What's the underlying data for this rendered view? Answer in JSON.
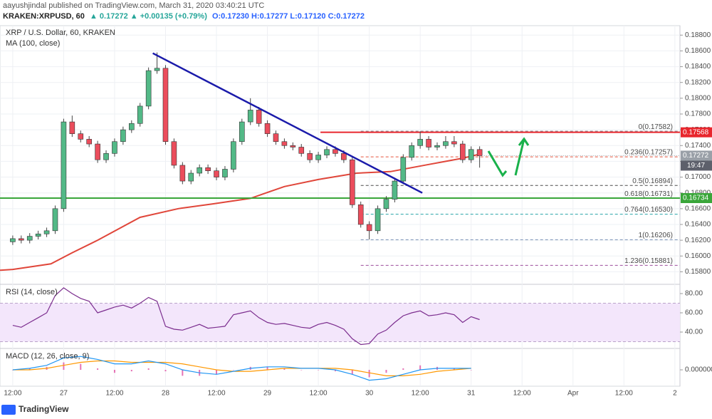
{
  "header": {
    "publisher": "aayushjindal published on TradingView.com, March 31, 2020 03:40:21 UTC",
    "symbol": "KRAKEN:XRPUSD, 60",
    "quote": "▲ 0.17272 ▲ +0.00135 (+0.79%)",
    "ohlc": "O:0.17230 H:0.17277 L:0.17120 C:0.17272"
  },
  "footer": {
    "brand": "TradingView"
  },
  "chart_data": [
    {
      "type": "candlestick",
      "title": "XRP / U.S. Dollar, 60, KRAKEN",
      "up_color": "#53b987",
      "down_color": "#eb4d5c",
      "x": [
        0,
        2,
        4,
        6,
        8,
        10,
        12,
        14,
        16,
        18,
        20,
        22,
        24,
        26,
        28,
        30,
        32,
        34,
        36,
        38,
        40,
        42,
        44,
        46,
        48,
        50,
        52,
        54,
        56,
        58,
        60,
        62,
        64,
        66,
        68,
        70,
        72,
        74,
        76,
        78,
        80,
        82,
        84,
        86,
        88,
        90,
        92,
        94,
        96,
        98,
        100,
        102,
        104,
        106,
        108,
        110
      ],
      "open": [
        0.1618,
        0.1622,
        0.162,
        0.1625,
        0.1628,
        0.1632,
        0.166,
        0.177,
        0.1755,
        0.1748,
        0.1742,
        0.1722,
        0.173,
        0.1745,
        0.176,
        0.1768,
        0.179,
        0.1835,
        0.1838,
        0.1745,
        0.1715,
        0.1695,
        0.1705,
        0.1712,
        0.1708,
        0.17,
        0.171,
        0.1745,
        0.177,
        0.1785,
        0.1768,
        0.1755,
        0.1745,
        0.174,
        0.1738,
        0.173,
        0.1722,
        0.1728,
        0.1735,
        0.173,
        0.1722,
        0.1665,
        0.164,
        0.1632,
        0.166,
        0.1672,
        0.1695,
        0.1725,
        0.174,
        0.1748,
        0.1738,
        0.174,
        0.1745,
        0.1742,
        0.1722,
        0.1735
      ],
      "high": [
        0.1626,
        0.1626,
        0.1629,
        0.1632,
        0.1636,
        0.1664,
        0.1774,
        0.1778,
        0.1759,
        0.1752,
        0.1746,
        0.1734,
        0.1749,
        0.1764,
        0.1772,
        0.1794,
        0.1839,
        0.1858,
        0.1842,
        0.1749,
        0.1719,
        0.1709,
        0.1716,
        0.1716,
        0.1712,
        0.1714,
        0.1749,
        0.1774,
        0.18,
        0.1789,
        0.1772,
        0.1759,
        0.1749,
        0.1744,
        0.1742,
        0.1734,
        0.1732,
        0.1739,
        0.1739,
        0.1734,
        0.1726,
        0.1669,
        0.1644,
        0.1664,
        0.1676,
        0.1699,
        0.1729,
        0.1744,
        0.1758,
        0.1752,
        0.1744,
        0.1752,
        0.1752,
        0.1746,
        0.1739,
        0.1739
      ],
      "low": [
        0.1614,
        0.1616,
        0.1616,
        0.1621,
        0.1624,
        0.1628,
        0.1656,
        0.1751,
        0.1744,
        0.1738,
        0.1718,
        0.1718,
        0.1726,
        0.1741,
        0.1756,
        0.1764,
        0.1786,
        0.1831,
        0.1741,
        0.1711,
        0.1691,
        0.1691,
        0.1701,
        0.1704,
        0.1696,
        0.1696,
        0.1706,
        0.1741,
        0.1766,
        0.1764,
        0.1751,
        0.1741,
        0.1736,
        0.1734,
        0.1726,
        0.1718,
        0.1718,
        0.1724,
        0.1726,
        0.1718,
        0.1661,
        0.1636,
        0.1621,
        0.1628,
        0.1656,
        0.1668,
        0.1691,
        0.1721,
        0.1736,
        0.1734,
        0.1734,
        0.1736,
        0.1738,
        0.1718,
        0.1718,
        0.1712
      ],
      "close": [
        0.1622,
        0.162,
        0.1625,
        0.1628,
        0.1632,
        0.166,
        0.177,
        0.1755,
        0.1748,
        0.1742,
        0.1722,
        0.173,
        0.1745,
        0.176,
        0.1768,
        0.179,
        0.1835,
        0.1838,
        0.1745,
        0.1715,
        0.1695,
        0.1705,
        0.1712,
        0.1708,
        0.17,
        0.171,
        0.1745,
        0.177,
        0.1785,
        0.1768,
        0.1755,
        0.1745,
        0.174,
        0.1738,
        0.173,
        0.1722,
        0.1728,
        0.1735,
        0.173,
        0.1722,
        0.1665,
        0.164,
        0.1632,
        0.166,
        0.1672,
        0.1695,
        0.1725,
        0.174,
        0.1748,
        0.1738,
        0.174,
        0.1745,
        0.1742,
        0.1722,
        0.1735,
        0.1727
      ],
      "series": [
        {
          "name": "MA (100, close)",
          "color": "#e0463a",
          "x": [
            -3,
            0,
            9,
            14,
            20,
            30,
            39,
            47,
            56,
            64,
            72,
            81,
            89,
            98,
            106,
            110
          ],
          "values": [
            0.1582,
            0.1583,
            0.159,
            0.1604,
            0.162,
            0.1649,
            0.166,
            0.1666,
            0.1673,
            0.1688,
            0.1697,
            0.1705,
            0.1707,
            0.1716,
            0.1724,
            0.1729
          ]
        }
      ],
      "trendline": {
        "color": "#1a1aaa",
        "x": [
          33,
          96.5
        ],
        "values": [
          0.1857,
          0.168
        ]
      },
      "hlines": [
        {
          "value": 0.17568,
          "color": "#e8262d",
          "from_x": 72.5
        },
        {
          "value": 0.16734,
          "color": "#3aa63a",
          "from_x": -3
        }
      ],
      "fib": {
        "from_x": 82,
        "levels": [
          {
            "value": 0.17582,
            "label": "0(0.17582)",
            "color": "#787b86"
          },
          {
            "value": 0.17257,
            "label": "0.236(0.17257)",
            "color": "#e5553f"
          },
          {
            "value": 0.16894,
            "label": "0.5(0.16894)",
            "color": "#4c4c4c"
          },
          {
            "value": 0.16731,
            "label": "0.618(0.16731)",
            "color": "#3ba55c"
          },
          {
            "value": 0.1653,
            "label": "0.764(0.16530)",
            "color": "#27a2a8"
          },
          {
            "value": 0.16206,
            "label": "1(0.16206)",
            "color": "#7c93b8"
          },
          {
            "value": 0.15881,
            "label": "1.236(0.15881)",
            "color": "#9c4c9c"
          }
        ]
      },
      "last_price": {
        "value": 0.17272,
        "color": "#9aa0a8"
      },
      "countdown": "19:47",
      "xlim": [
        -3,
        157.2
      ],
      "xticks": [
        {
          "value": 0,
          "label": "12:00"
        },
        {
          "value": 12,
          "label": "27"
        },
        {
          "value": 24,
          "label": "12:00"
        },
        {
          "value": 36,
          "label": "28"
        },
        {
          "value": 48,
          "label": "12:00"
        },
        {
          "value": 60,
          "label": "29"
        },
        {
          "value": 72,
          "label": "12:00"
        },
        {
          "value": 84,
          "label": "30"
        },
        {
          "value": 96,
          "label": "12:00"
        },
        {
          "value": 108,
          "label": "31"
        },
        {
          "value": 120,
          "label": "12:00"
        },
        {
          "value": 132,
          "label": "Apr"
        },
        {
          "value": 144,
          "label": "12:00"
        },
        {
          "value": 156,
          "label": "2"
        }
      ],
      "ylim": [
        0.1565,
        0.1892
      ],
      "yticks": [
        {
          "value": 0.188,
          "label": "0.18800"
        },
        {
          "value": 0.186,
          "label": "0.18600"
        },
        {
          "value": 0.184,
          "label": "0.18400"
        },
        {
          "value": 0.182,
          "label": "0.18200"
        },
        {
          "value": 0.18,
          "label": "0.18000"
        },
        {
          "value": 0.178,
          "label": "0.17800"
        },
        {
          "value": 0.176,
          "label": "0.17600"
        },
        {
          "value": 0.174,
          "label": "0.17400"
        },
        {
          "value": 0.172,
          "label": "0.17200"
        },
        {
          "value": 0.17,
          "label": "0.17000"
        },
        {
          "value": 0.168,
          "label": "0.16800"
        },
        {
          "value": 0.166,
          "label": "0.16600"
        },
        {
          "value": 0.164,
          "label": "0.16400"
        },
        {
          "value": 0.162,
          "label": "0.16200"
        },
        {
          "value": 0.16,
          "label": "0.16000"
        },
        {
          "value": 0.158,
          "label": "0.15800"
        }
      ],
      "grid": true
    },
    {
      "type": "line",
      "title": "RSI (14, close)",
      "color": "#7b2d8e",
      "band": [
        30,
        70
      ],
      "band_color": "#f3e6fb",
      "x": [
        0,
        2,
        4,
        6,
        8,
        10,
        12,
        14,
        16,
        18,
        20,
        22,
        24,
        26,
        28,
        30,
        32,
        34,
        36,
        38,
        40,
        42,
        44,
        46,
        48,
        50,
        52,
        54,
        56,
        58,
        60,
        62,
        64,
        66,
        68,
        70,
        72,
        74,
        76,
        78,
        80,
        82,
        84,
        86,
        88,
        90,
        92,
        94,
        96,
        98,
        100,
        102,
        104,
        106,
        108,
        110
      ],
      "values": [
        47,
        45,
        50,
        55,
        60,
        78,
        86,
        80,
        75,
        72,
        60,
        63,
        66,
        68,
        65,
        70,
        76,
        72,
        46,
        43,
        42,
        45,
        48,
        44,
        45,
        46,
        58,
        60,
        62,
        55,
        50,
        48,
        49,
        47,
        45,
        44,
        48,
        50,
        47,
        43,
        33,
        27,
        28,
        38,
        42,
        50,
        57,
        60,
        62,
        57,
        58,
        60,
        58,
        50,
        56,
        53
      ],
      "ylim": [
        23.7,
        88.9
      ],
      "yticks": [
        {
          "value": 80,
          "label": "80.00"
        },
        {
          "value": 60,
          "label": "60.00"
        },
        {
          "value": 40,
          "label": "40.00"
        }
      ]
    },
    {
      "type": "macd",
      "title": "MACD (12, 26, close, 9)",
      "x": [
        0,
        4,
        8,
        12,
        16,
        20,
        24,
        28,
        32,
        36,
        40,
        44,
        48,
        52,
        56,
        60,
        64,
        68,
        72,
        76,
        80,
        84,
        88,
        92,
        96,
        100,
        104,
        108
      ],
      "macd": {
        "color": "#2196f3",
        "values": [
          0,
          0.0001,
          0.0003,
          0.0008,
          0.0009,
          0.0007,
          0.0004,
          0.0004,
          0.0006,
          0.0004,
          0,
          -0.0002,
          -0.0003,
          -0.0001,
          0.0001,
          0.0002,
          0.0002,
          0.0001,
          0.0001,
          0,
          -0.0003,
          -0.0007,
          -0.0006,
          -0.0003,
          0,
          0.0001,
          0.0001,
          0.0001
        ]
      },
      "signal": {
        "color": "#ff9800",
        "values": [
          0,
          0,
          0.0001,
          0.0003,
          0.0005,
          0.0006,
          0.0006,
          0.0005,
          0.0005,
          0.0005,
          0.0004,
          0.0002,
          0,
          -0.0001,
          -0.0001,
          0,
          0.0001,
          0.0001,
          0.0001,
          0.0001,
          0,
          -0.0002,
          -0.0004,
          -0.0004,
          -0.0003,
          -0.0001,
          0,
          0.0001
        ]
      },
      "histogram": {
        "up_color": "#e573b5",
        "down_color": "#e573b5",
        "values": [
          0,
          0.0001,
          0.0002,
          0.0005,
          0.0004,
          0.0001,
          -0.0002,
          -0.0001,
          0.0001,
          -0.0001,
          -0.0004,
          -0.0004,
          -0.0003,
          0,
          0.0002,
          0.0002,
          0.0001,
          0,
          0,
          -0.0001,
          -0.0003,
          -0.0005,
          -0.0002,
          0.0001,
          0.0003,
          0.0002,
          0.0001,
          0
        ]
      },
      "ylim": [
        -0.0011,
        0.0011
      ],
      "yticks": [
        {
          "value": 0,
          "label": "0.000000"
        }
      ]
    }
  ]
}
